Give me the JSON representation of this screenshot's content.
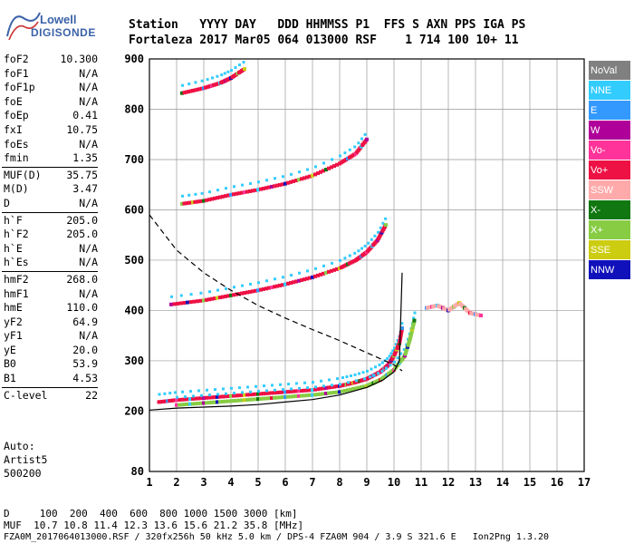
{
  "logo": {
    "line1": "Lowell",
    "line2": "DIGISONDE"
  },
  "header": {
    "line1": "Station   YYYY DAY   DDD HHMMSS P1  FFS S AXN PPS IGA PS",
    "line2": "Fortaleza 2017 Mar05 064 013000 RSF    1 714 100 10+ 11"
  },
  "params": [
    {
      "label": "foF2",
      "value": "10.300"
    },
    {
      "label": "foF1",
      "value": "N/A"
    },
    {
      "label": "foF1p",
      "value": "N/A"
    },
    {
      "label": "foE",
      "value": "N/A"
    },
    {
      "label": "foEp",
      "value": "0.41"
    },
    {
      "label": "fxI",
      "value": "10.75"
    },
    {
      "label": "foEs",
      "value": "N/A"
    },
    {
      "label": "fmin",
      "value": "1.35"
    },
    {
      "label": "MUF(D)",
      "value": "35.75"
    },
    {
      "label": "M(D)",
      "value": "3.47"
    },
    {
      "label": "D",
      "value": "N/A"
    },
    {
      "label": "h`F",
      "value": "205.0"
    },
    {
      "label": "h`F2",
      "value": "205.0"
    },
    {
      "label": "h`E",
      "value": "N/A"
    },
    {
      "label": "h`Es",
      "value": "N/A"
    },
    {
      "label": "hmF2",
      "value": "268.0"
    },
    {
      "label": "hmF1",
      "value": "N/A"
    },
    {
      "label": "hmE",
      "value": "110.0"
    },
    {
      "label": "yF2",
      "value": "64.9"
    },
    {
      "label": "yF1",
      "value": "N/A"
    },
    {
      "label": "yE",
      "value": "20.0"
    },
    {
      "label": "B0",
      "value": "53.9"
    },
    {
      "label": "B1",
      "value": "4.53"
    },
    {
      "label": "C-level",
      "value": "22"
    }
  ],
  "auto": {
    "line1": "Auto:",
    "line2": "Artist5",
    "line3": "500200"
  },
  "footer": {
    "line1": "D     100  200  400  600  800 1000 1500 3000 [km]",
    "line2": "MUF  10.7 10.8 11.4 12.3 13.6 15.6 21.2 35.8 [MHz]",
    "line3": "FZA0M_2017064013000.RSF / 320fx256h 50 kHz 5.0 km / DPS-4 FZA0M 904 / 3.9 S 321.6 E   Ion2Png 1.3.20"
  },
  "legend": [
    {
      "label": "NoVal",
      "color": "#808080"
    },
    {
      "label": "NNE",
      "color": "#33ccff"
    },
    {
      "label": "E",
      "color": "#3399ff"
    },
    {
      "label": "W",
      "color": "#b0009a"
    },
    {
      "label": "Vo-",
      "color": "#ff3399"
    },
    {
      "label": "Vo+",
      "color": "#ee1144"
    },
    {
      "label": "SSW",
      "color": "#ffaaaa"
    },
    {
      "label": "X-",
      "color": "#117711"
    },
    {
      "label": "X+",
      "color": "#88cc44"
    },
    {
      "label": "SSE",
      "color": "#cccc11"
    },
    {
      "label": "NNW",
      "color": "#1111bb"
    }
  ],
  "chart_data": {
    "type": "scatter",
    "xlim": [
      1,
      17
    ],
    "ylim": [
      80,
      900
    ],
    "x_ticks": [
      1,
      2,
      3,
      4,
      5,
      6,
      7,
      8,
      9,
      10,
      11,
      12,
      13,
      14,
      15,
      16,
      17
    ],
    "y_ticks": [
      80,
      200,
      300,
      400,
      500,
      600,
      700,
      800,
      900
    ],
    "grid": true,
    "traces": [
      {
        "name": "O-trace F2 (first hop)",
        "color": "#ee1144",
        "x": [
          1.35,
          2,
          3,
          4,
          5,
          6,
          7,
          8,
          8.5,
          9,
          9.5,
          9.8,
          10.0,
          10.2,
          10.3
        ],
        "y": [
          218,
          222,
          226,
          230,
          234,
          238,
          242,
          250,
          256,
          264,
          278,
          292,
          310,
          335,
          365
        ]
      },
      {
        "name": "X-trace F2 (first hop)",
        "color": "#88cc44",
        "x": [
          2,
          3,
          4,
          5,
          6,
          7,
          8,
          9,
          9.5,
          10,
          10.4,
          10.6,
          10.75
        ],
        "y": [
          212,
          216,
          220,
          224,
          228,
          232,
          238,
          250,
          262,
          282,
          310,
          345,
          380
        ]
      },
      {
        "name": "Second hop",
        "color": "#ee1144",
        "x": [
          1.8,
          3,
          4,
          5,
          6,
          7,
          8,
          8.6,
          9,
          9.4,
          9.7
        ],
        "y": [
          412,
          420,
          430,
          440,
          452,
          466,
          484,
          500,
          516,
          540,
          570
        ]
      },
      {
        "name": "Third hop",
        "color": "#ee1144",
        "x": [
          2.2,
          3,
          4,
          5,
          6,
          7,
          8,
          8.6,
          9
        ],
        "y": [
          612,
          618,
          630,
          640,
          652,
          668,
          692,
          712,
          740
        ]
      },
      {
        "name": "Fourth hop",
        "color": "#ee1144",
        "x": [
          2.2,
          3,
          3.6,
          4,
          4.5
        ],
        "y": [
          832,
          842,
          852,
          862,
          880
        ]
      },
      {
        "name": "Spread F",
        "color": "#ffaaaa",
        "x": [
          11.2,
          11.6,
          12,
          12.4,
          12.8,
          13.2
        ],
        "y": [
          405,
          410,
          400,
          415,
          395,
          390
        ]
      }
    ],
    "profile": {
      "x": [
        1,
        2,
        3,
        4,
        5,
        6,
        7,
        8,
        9,
        9.6,
        10,
        10.2,
        10.3
      ],
      "y": [
        202,
        206,
        208,
        210,
        213,
        218,
        223,
        232,
        247,
        262,
        278,
        300,
        475
      ]
    },
    "muf_curve": {
      "x": [
        1,
        2,
        3,
        4,
        5,
        6,
        7,
        8,
        9,
        10,
        10.3
      ],
      "y": [
        590,
        520,
        475,
        440,
        410,
        385,
        362,
        340,
        316,
        292,
        280
      ]
    }
  }
}
